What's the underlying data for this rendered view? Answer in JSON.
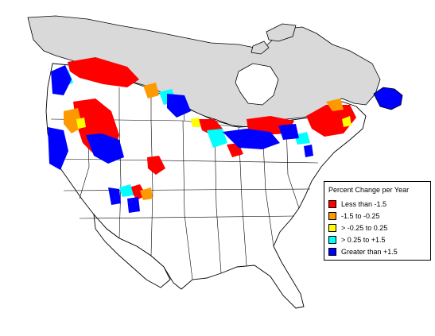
{
  "colors": {
    "background": "#ffffff",
    "no_data": "#d9d9d9",
    "boundary": "#000000",
    "less_than_neg_1_5": "#ff0000",
    "neg_1_5_to_neg_0_25": "#ff9900",
    "neg_0_25_to_0_25": "#ffff00",
    "pos_0_25_to_1_5": "#00ffff",
    "greater_than_1_5": "#0000ff"
  },
  "legend": {
    "title": "Percent Change per Year",
    "items": [
      {
        "label": "Less than -1.5",
        "color": "#ff0000"
      },
      {
        "label": "-1.5 to -0.25",
        "color": "#ff9900"
      },
      {
        "label": "> -0.25 to 0.25",
        "color": "#ffff00"
      },
      {
        "label": "> 0.25 to +1.5",
        "color": "#00ffff"
      },
      {
        "label": "Greater than +1.5",
        "color": "#0000ff"
      }
    ]
  }
}
